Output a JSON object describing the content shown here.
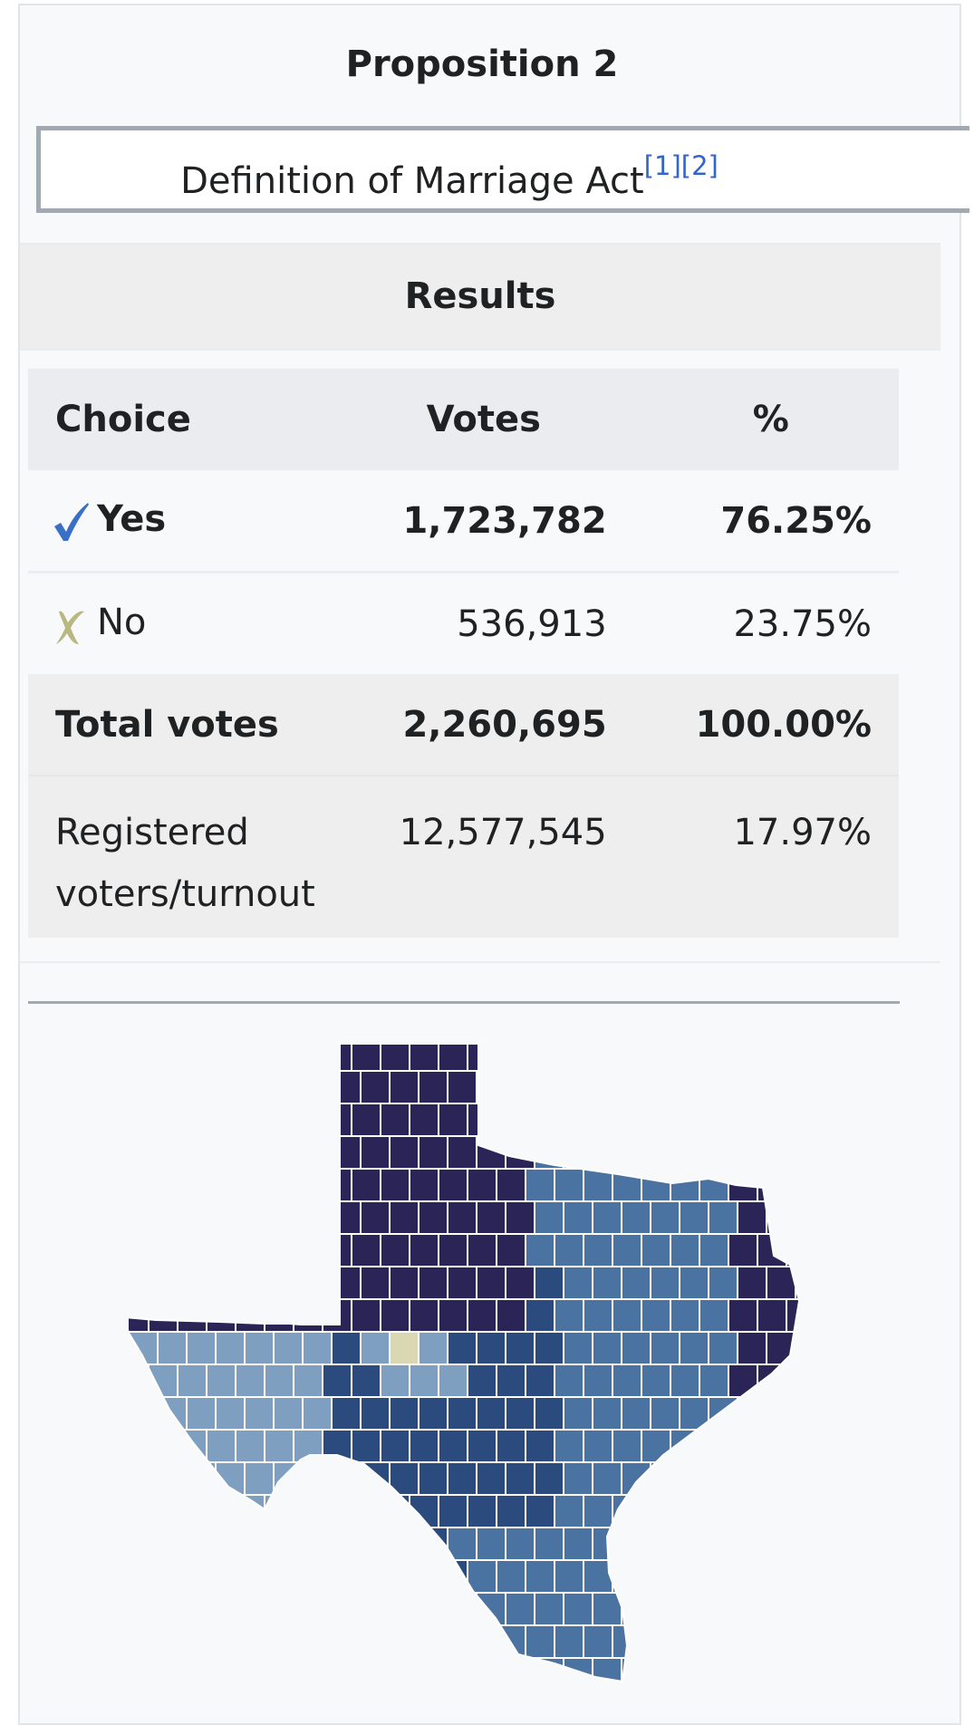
{
  "infobox": {
    "title": "Proposition 2",
    "subtitle": "Definition of Marriage Act",
    "ref1": "[1]",
    "ref2": "[2]"
  },
  "results": {
    "header": "Results",
    "columns": [
      "Choice",
      "Votes",
      "%"
    ],
    "rows": [
      {
        "choice": "Yes",
        "votes": "1,723,782",
        "pct": "76.25%",
        "mark": "check-icon",
        "winner": true
      },
      {
        "choice": "No",
        "votes": "536,913",
        "pct": "23.75%",
        "mark": "x-icon",
        "winner": false
      }
    ],
    "total": {
      "label": "Total votes",
      "votes": "2,260,695",
      "pct": "100.00%"
    },
    "registered": {
      "label": "Registered voters/turnout",
      "votes": "12,577,545",
      "pct": "17.97%"
    }
  },
  "map": {
    "subject": "Texas county results map",
    "palette": {
      "darkest": "#2b2457",
      "dark": "#2b4a7d",
      "mid": "#4a73a2",
      "light": "#7f9fc0",
      "pale": "#b4c6d8",
      "no": "#dad8b2"
    }
  },
  "colors": {
    "check": "#3a6fc7",
    "cross": "#b8b880",
    "link": "#3366cc"
  }
}
